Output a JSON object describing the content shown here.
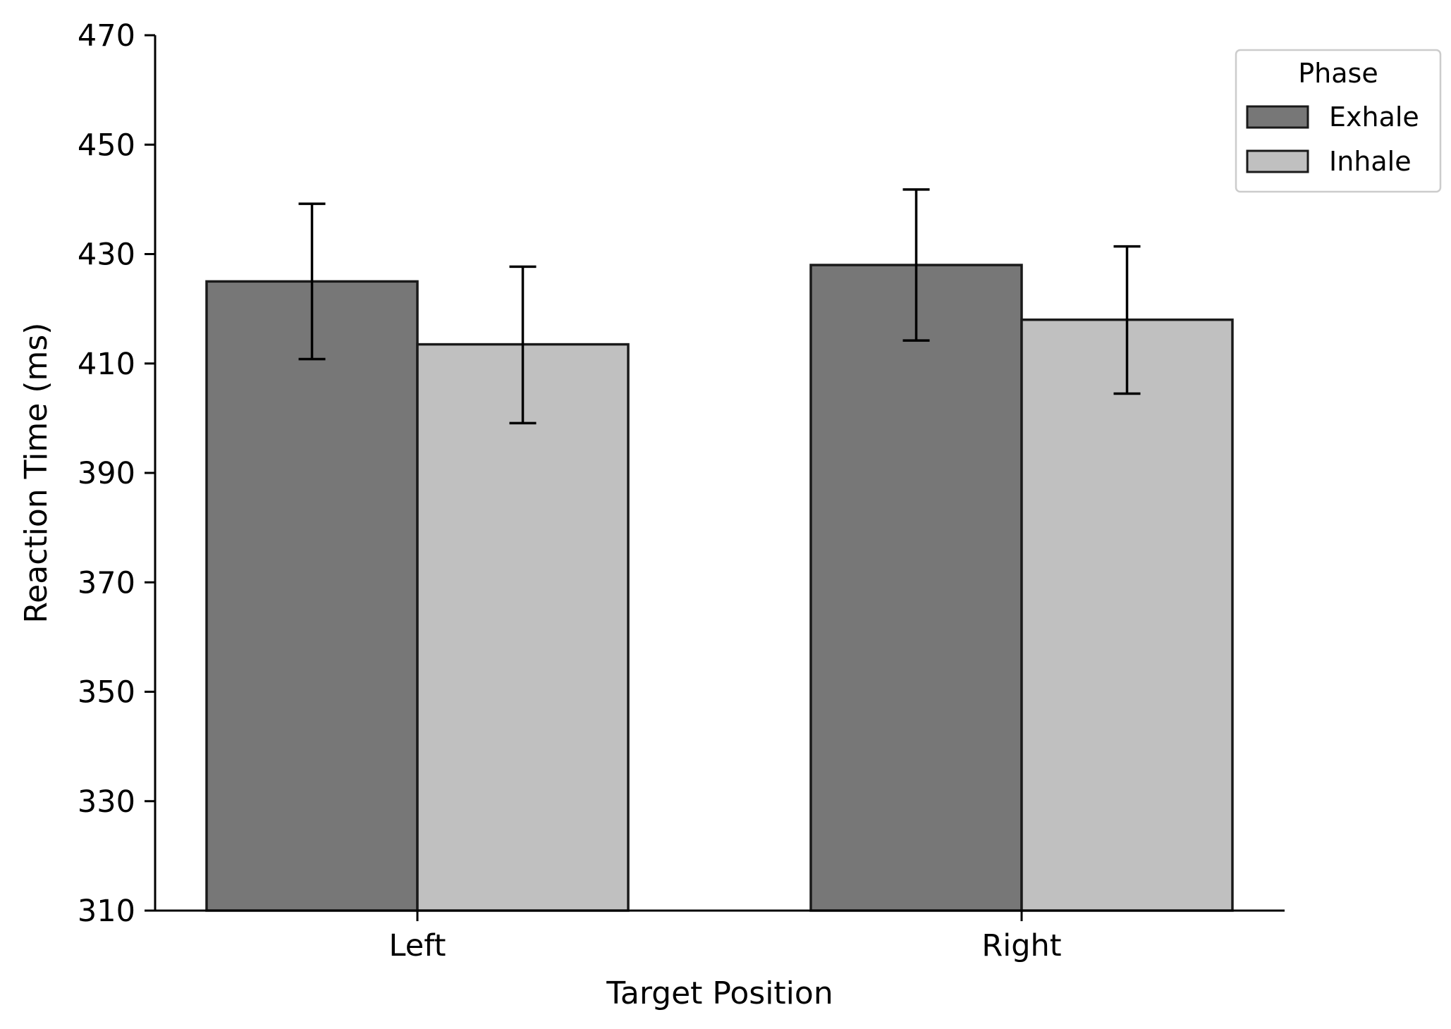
{
  "chart_data": {
    "type": "bar",
    "categories": [
      "Left",
      "Right"
    ],
    "series": [
      {
        "name": "Exhale",
        "values": [
          425,
          428
        ],
        "error_low": [
          410.8,
          414.2
        ],
        "error_high": [
          439.2,
          441.8
        ],
        "color": "#777777"
      },
      {
        "name": "Inhale",
        "values": [
          413.5,
          418
        ],
        "error_low": [
          399.1,
          404.5
        ],
        "error_high": [
          427.7,
          431.4
        ],
        "color": "#c0c0c0"
      }
    ],
    "xlabel": "Target Position",
    "ylabel": "Reaction Time (ms)",
    "ylim": [
      310,
      470
    ],
    "yticks": [
      310,
      330,
      350,
      370,
      390,
      410,
      430,
      450,
      470
    ],
    "grid": false,
    "legend": {
      "title": "Phase",
      "placement": "top-right"
    },
    "edge_color": "#1a1a1a"
  }
}
